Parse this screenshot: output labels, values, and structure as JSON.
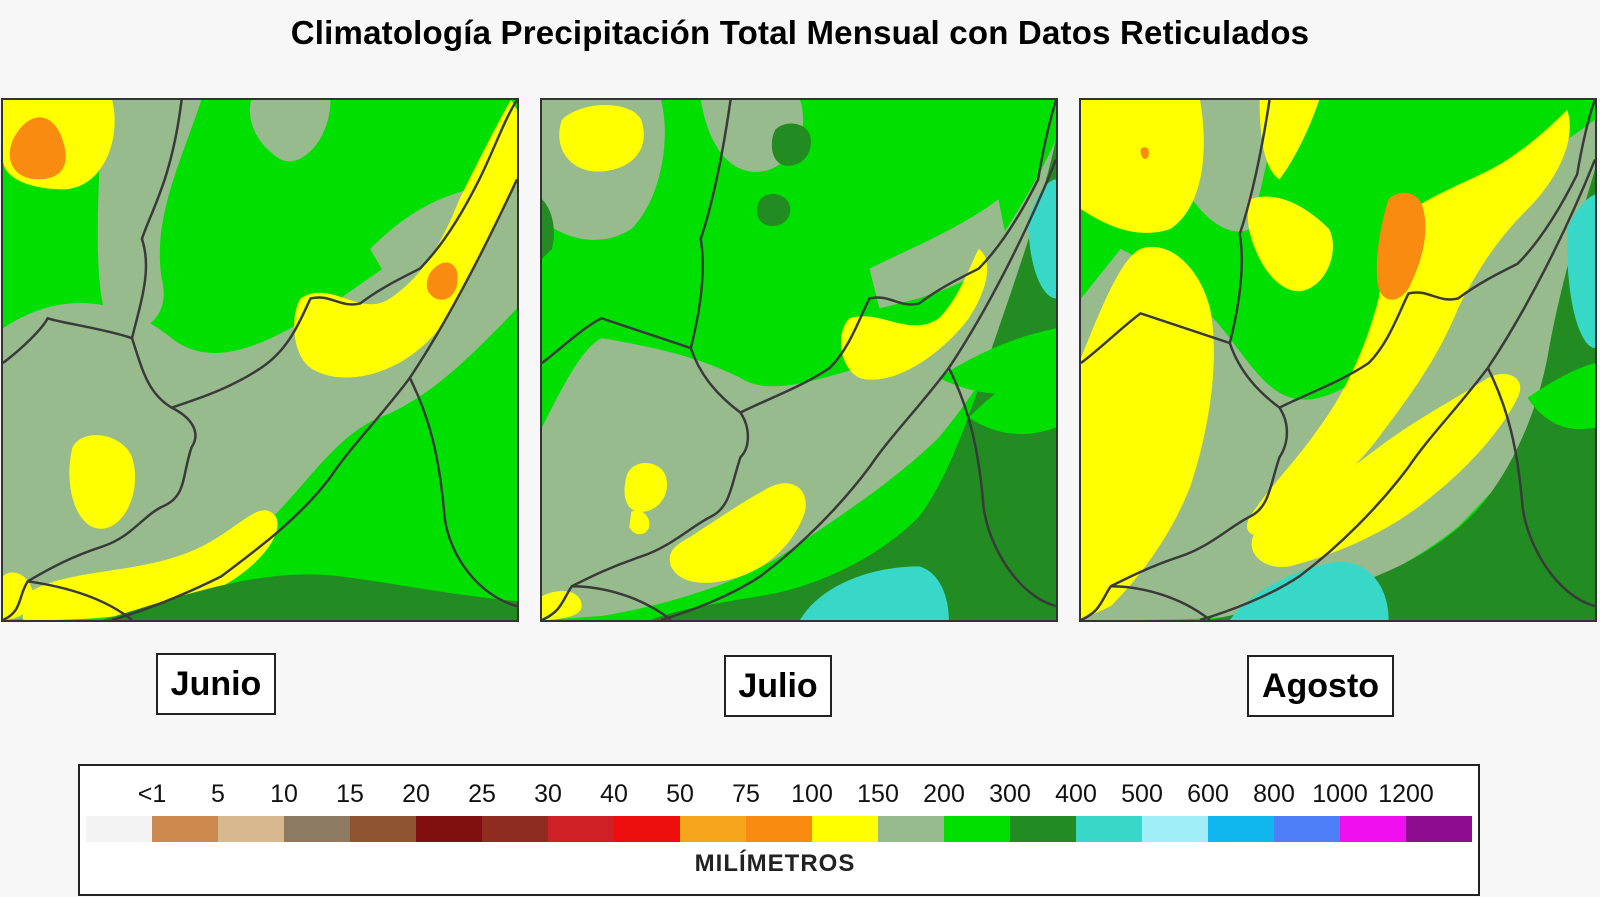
{
  "title": "Climatología Precipitación Total Mensual con Datos Reticulados",
  "maps": [
    {
      "id": "jun",
      "label": "Junio"
    },
    {
      "id": "jul",
      "label": "Julio"
    },
    {
      "id": "ago",
      "label": "Agosto"
    }
  ],
  "legend": {
    "unit": "MILÍMETROS",
    "ticks": [
      "<1",
      "5",
      "10",
      "15",
      "20",
      "25",
      "30",
      "40",
      "50",
      "75",
      "100",
      "150",
      "200",
      "300",
      "400",
      "500",
      "600",
      "800",
      "1000",
      "1200"
    ],
    "colors": [
      "#f3f3f3",
      "#cd8a4e",
      "#d7b88f",
      "#8d7a62",
      "#8e5530",
      "#820f0f",
      "#8f2c22",
      "#cf2125",
      "#ee0d0d",
      "#f7a51b",
      "#f98b10",
      "#ffff00",
      "#97bb8c",
      "#00e000",
      "#228b22",
      "#38d8c8",
      "#a0eff8",
      "#10b6f0",
      "#4f7ff8",
      "#f010ef",
      "#8c0b8e"
    ]
  },
  "colors": {
    "green_light": "#00e000",
    "green_dark": "#228b22",
    "gray_green": "#97bb8c",
    "yellow": "#ffff00",
    "orange": "#f98b10",
    "cyan": "#38d8c8"
  }
}
